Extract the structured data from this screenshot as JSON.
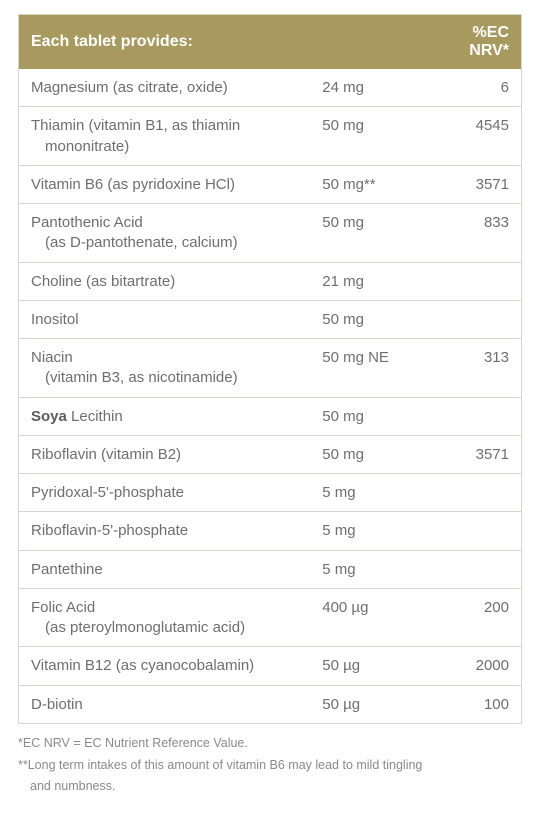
{
  "colors": {
    "header_bg": "#a89a5f",
    "header_text": "#ffffff",
    "border": "#d9d5c8",
    "body_text": "#6e6e6e",
    "footnote_text": "#8a8a8a"
  },
  "header": {
    "left": "Each tablet provides:",
    "right": "%EC NRV*"
  },
  "rows": [
    {
      "name": "Magnesium (as citrate, oxide)",
      "amount": "24 mg",
      "nrv": "6"
    },
    {
      "name": "Thiamin (vitamin B1, as thiamin",
      "sub": "mononitrate)",
      "amount": "50 mg",
      "nrv": "4545"
    },
    {
      "name": "Vitamin B6 (as pyridoxine HCl)",
      "amount": "50 mg**",
      "nrv": "3571"
    },
    {
      "name": "Pantothenic Acid",
      "sub": "(as D-pantothenate, calcium)",
      "amount": "50 mg",
      "nrv": "833"
    },
    {
      "name": "Choline (as bitartrate)",
      "amount": "21 mg",
      "nrv": ""
    },
    {
      "name": "Inositol",
      "amount": "50 mg",
      "nrv": ""
    },
    {
      "name": "Niacin",
      "sub": "(vitamin B3, as nicotinamide)",
      "amount": "50 mg NE",
      "nrv": "313"
    },
    {
      "name_bold": "Soya",
      "name_rest": " Lecithin",
      "amount": "50 mg",
      "nrv": ""
    },
    {
      "name": "Riboflavin (vitamin B2)",
      "amount": "50 mg",
      "nrv": "3571"
    },
    {
      "name": "Pyridoxal-5'-phosphate",
      "amount": "5 mg",
      "nrv": ""
    },
    {
      "name": "Riboflavin-5'-phosphate",
      "amount": "5 mg",
      "nrv": ""
    },
    {
      "name": "Pantethine",
      "amount": "5 mg",
      "nrv": ""
    },
    {
      "name": "Folic Acid",
      "sub": "(as pteroylmonoglutamic acid)",
      "amount": "400 µg",
      "nrv": "200"
    },
    {
      "name": "Vitamin B12 (as cyanocobalamin)",
      "amount": "50 µg",
      "nrv": "2000"
    },
    {
      "name": "D-biotin",
      "amount": "50 µg",
      "nrv": "100"
    }
  ],
  "footnotes": {
    "f1": "*EC NRV = EC Nutrient Reference Value.",
    "f2a": "**Long term intakes of this amount of vitamin B6 may lead to mild tingling",
    "f2b": "and numbness."
  }
}
